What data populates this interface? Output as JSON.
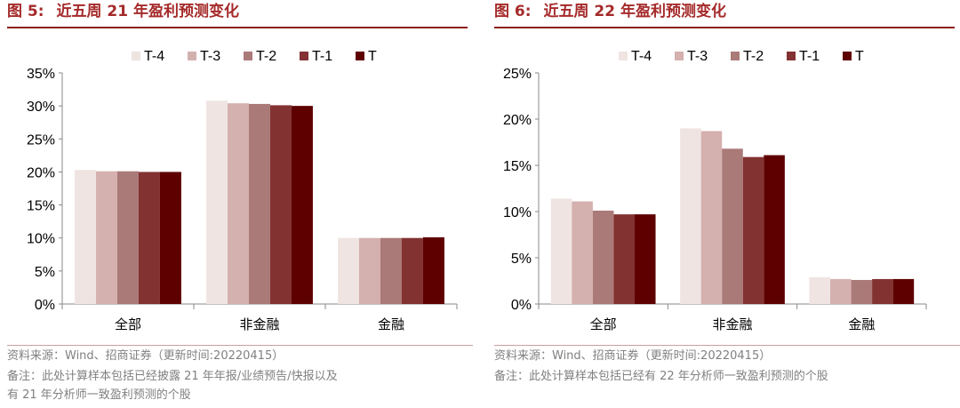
{
  "colors": {
    "title": "#a52a2a",
    "series": [
      "#efe4e2",
      "#d4b0ae",
      "#aa7a78",
      "#833232",
      "#5e0000"
    ]
  },
  "figures": [
    {
      "label": "图 5:",
      "title": "近五周 21 年盈利预测变化",
      "source": "资料来源：Wind、招商证券（更新时间:20220415）",
      "note": "备注：此处计算样本包括已经披露 21 年年报/业绩预告/快报以及",
      "note2": "有 21 年分析师一致盈利预测的个股"
    },
    {
      "label": "图 6:",
      "title": "近五周 22 年盈利预测变化",
      "source": "资料来源：Wind、招商证券（更新时间:20220415）",
      "note": "备注：此处计算样本包括已经有 22 年分析师一致盈利预测的个股",
      "note2": ""
    }
  ],
  "chart_data": [
    {
      "type": "bar",
      "categories": [
        "全部",
        "非金融",
        "金融"
      ],
      "series": [
        {
          "name": "T-4",
          "values": [
            20.3,
            30.8,
            10.0
          ]
        },
        {
          "name": "T-3",
          "values": [
            20.1,
            30.4,
            10.0
          ]
        },
        {
          "name": "T-2",
          "values": [
            20.1,
            30.3,
            10.0
          ]
        },
        {
          "name": "T-1",
          "values": [
            20.0,
            30.1,
            10.0
          ]
        },
        {
          "name": "T",
          "values": [
            20.0,
            30.0,
            10.1
          ]
        }
      ],
      "ylim": [
        0,
        35
      ],
      "yticks": [
        "0%",
        "5%",
        "10%",
        "15%",
        "20%",
        "25%",
        "30%",
        "35%"
      ],
      "legend": "top",
      "grid": false
    },
    {
      "type": "bar",
      "categories": [
        "全部",
        "非金融",
        "金融"
      ],
      "series": [
        {
          "name": "T-4",
          "values": [
            11.4,
            19.0,
            2.9
          ]
        },
        {
          "name": "T-3",
          "values": [
            11.1,
            18.7,
            2.7
          ]
        },
        {
          "name": "T-2",
          "values": [
            10.1,
            16.8,
            2.6
          ]
        },
        {
          "name": "T-1",
          "values": [
            9.7,
            15.9,
            2.7
          ]
        },
        {
          "name": "T",
          "values": [
            9.7,
            16.1,
            2.7
          ]
        }
      ],
      "ylim": [
        0,
        25
      ],
      "yticks": [
        "0%",
        "5%",
        "10%",
        "15%",
        "20%",
        "25%"
      ],
      "legend": "top",
      "grid": false
    }
  ]
}
